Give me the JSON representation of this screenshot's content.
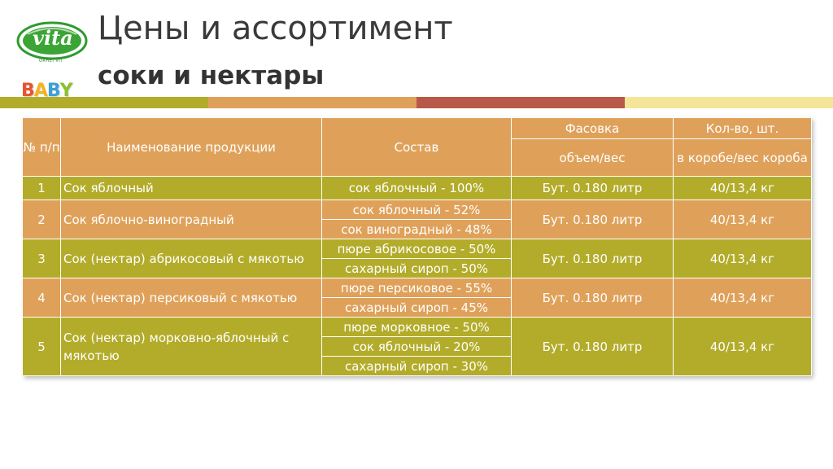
{
  "logo": {
    "brand": "vita",
    "sub": "ORHEI VIT",
    "baby": [
      "B",
      "A",
      "B",
      "Y"
    ],
    "baby_colors": [
      "#e8542e",
      "#f2b51f",
      "#3aa0d8",
      "#8bbf2f"
    ],
    "brand_green": "#2f9a2f"
  },
  "header": {
    "title": "Цены и ассортимент",
    "subtitle": "соки и нектары"
  },
  "band_colors": [
    "#b3ac2a",
    "#dfa15a",
    "#b85848",
    "#f5e59a"
  ],
  "table": {
    "headers": {
      "num": "№ п/п",
      "name": "Наименование продукции",
      "composition": "Состав",
      "packing": "Фасовка",
      "packing_sub": "объем/вес",
      "qty": "Кол-во, шт.",
      "qty_sub": "в коробе/вес короба"
    },
    "rows": [
      {
        "num": "1",
        "name": "Сок яблочный",
        "composition": [
          "сок яблочный - 100%"
        ],
        "packing": "Бут. 0.180 литр",
        "qty": "40/13,4 кг",
        "style": "olive"
      },
      {
        "num": "2",
        "name": "Сок яблочно-виноградный",
        "composition": [
          "сок яблочный - 52%",
          "сок виноградный - 48%"
        ],
        "packing": "Бут. 0.180 литр",
        "qty": "40/13,4 кг",
        "style": "orange"
      },
      {
        "num": "3",
        "name": "Сок (нектар) абрикосовый с мякотью",
        "composition": [
          "пюре абрикосовое - 50%",
          "сахарный сироп - 50%"
        ],
        "packing": "Бут. 0.180 литр",
        "qty": "40/13,4 кг",
        "style": "olive"
      },
      {
        "num": "4",
        "name": "Сок (нектар) персиковый с мякотью",
        "composition": [
          "пюре персиковое - 55%",
          "сахарный сироп - 45%"
        ],
        "packing": "Бут. 0.180 литр",
        "qty": "40/13,4 кг",
        "style": "orange"
      },
      {
        "num": "5",
        "name": "Сок (нектар) морковно-яблочный с мякотью",
        "composition": [
          "пюре морковное - 50%",
          "сок яблочный - 20%",
          "сахарный сироп - 30%"
        ],
        "packing": "Бут. 0.180 литр",
        "qty": "40/13,4 кг",
        "style": "olive"
      }
    ]
  }
}
